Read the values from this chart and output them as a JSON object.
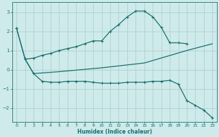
{
  "background_color": "#ceeaea",
  "grid_color": "#aed0d0",
  "line_color": "#1a6e6e",
  "xlabel": "Humidex (Indice chaleur)",
  "xlim": [
    -0.5,
    23.5
  ],
  "ylim": [
    -2.7,
    3.5
  ],
  "yticks": [
    -2,
    -1,
    0,
    1,
    2,
    3
  ],
  "xticks": [
    0,
    1,
    2,
    3,
    4,
    5,
    6,
    7,
    8,
    9,
    10,
    11,
    12,
    13,
    14,
    15,
    16,
    17,
    18,
    19,
    20,
    21,
    22,
    23
  ],
  "curve1_x": [
    0,
    1,
    2,
    3,
    4,
    5,
    6,
    7,
    8,
    9,
    10,
    11,
    12,
    13,
    14,
    15,
    16,
    17,
    18,
    19,
    20
  ],
  "curve1_y": [
    2.15,
    0.55,
    0.6,
    0.75,
    0.85,
    1.0,
    1.1,
    1.2,
    1.35,
    1.5,
    1.5,
    2.0,
    2.35,
    2.75,
    3.05,
    3.05,
    2.75,
    2.2,
    1.4,
    1.4,
    1.35
  ],
  "curve2_x": [
    0,
    1,
    2,
    3,
    4,
    5,
    6,
    7,
    8,
    9,
    10,
    11,
    12,
    13,
    14,
    15,
    16,
    17,
    18,
    19,
    20,
    21,
    22,
    23
  ],
  "curve2_y": [
    2.15,
    0.55,
    -0.2,
    -0.6,
    -0.65,
    -0.65,
    -0.6,
    -0.6,
    -0.6,
    -0.65,
    -0.7,
    -0.7,
    -0.7,
    -0.65,
    -0.65,
    -0.65,
    -0.6,
    -0.6,
    -0.55,
    -0.75,
    -1.6,
    -1.85,
    -2.1,
    -2.5
  ],
  "curve3_x": [
    1,
    2,
    5,
    10,
    15,
    20,
    23
  ],
  "curve3_y": [
    0.55,
    -0.2,
    -0.1,
    0.1,
    0.35,
    1.0,
    1.35
  ]
}
